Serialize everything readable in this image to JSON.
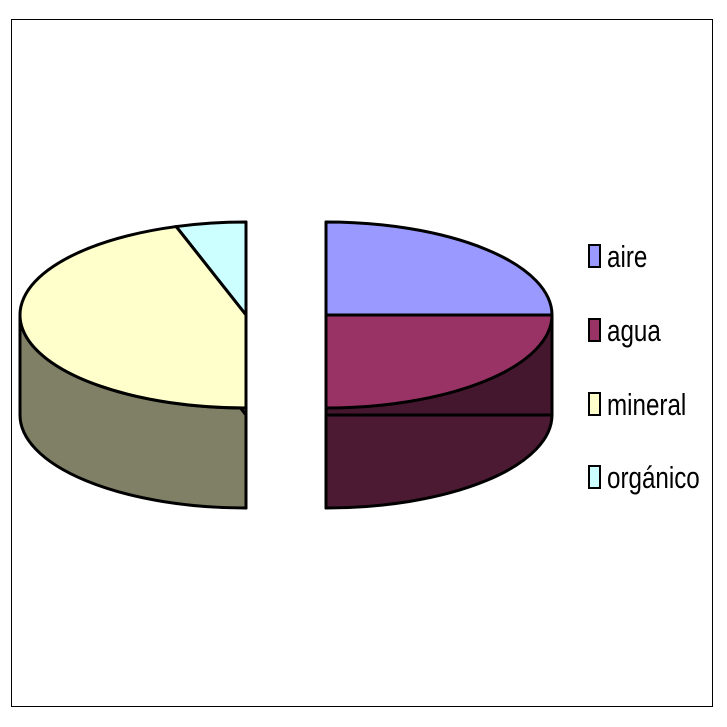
{
  "chart_data": {
    "type": "pie",
    "style": "3d-exploded",
    "categories": [
      "aire",
      "agua",
      "mineral",
      "orgánico"
    ],
    "values": [
      25,
      25,
      45,
      5
    ],
    "colors": {
      "aire": "#9999ff",
      "agua": "#993366",
      "mineral": "#ffffcc",
      "orgánico": "#ccffff"
    },
    "legend_position": "right"
  },
  "legend": {
    "items": [
      {
        "label": "aire",
        "color": "#9999ff"
      },
      {
        "label": "agua",
        "color": "#993366"
      },
      {
        "label": "mineral",
        "color": "#ffffcc"
      },
      {
        "label": "orgánico",
        "color": "#ccffff"
      }
    ]
  }
}
